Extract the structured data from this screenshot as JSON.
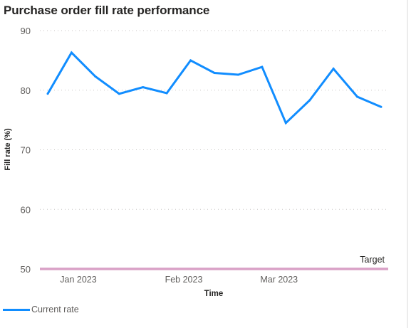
{
  "chart_data": {
    "type": "line",
    "title": "Purchase order fill rate performance",
    "xlabel": "Time",
    "ylabel": "Fill rate (%)",
    "ylim": [
      50,
      90
    ],
    "yticks": [
      50,
      60,
      70,
      80,
      90
    ],
    "xticks": [
      {
        "date": "2023-01-01",
        "label": "Jan 2023"
      },
      {
        "date": "2023-02-01",
        "label": "Feb 2023"
      },
      {
        "date": "2023-03-01",
        "label": "Mar 2023"
      }
    ],
    "grid": true,
    "legend_position": "bottom-left",
    "series": [
      {
        "name": "Current rate",
        "color": "#118DFF",
        "points": [
          {
            "x": "2022-12-23",
            "y": 79.4
          },
          {
            "x": "2022-12-30",
            "y": 86.3
          },
          {
            "x": "2023-01-06",
            "y": 82.3
          },
          {
            "x": "2023-01-13",
            "y": 79.4
          },
          {
            "x": "2023-01-20",
            "y": 80.5
          },
          {
            "x": "2023-01-27",
            "y": 79.5
          },
          {
            "x": "2023-02-03",
            "y": 85.0
          },
          {
            "x": "2023-02-10",
            "y": 82.9
          },
          {
            "x": "2023-02-17",
            "y": 82.6
          },
          {
            "x": "2023-02-24",
            "y": 83.9
          },
          {
            "x": "2023-03-03",
            "y": 74.5
          },
          {
            "x": "2023-03-10",
            "y": 78.3
          },
          {
            "x": "2023-03-17",
            "y": 83.6
          },
          {
            "x": "2023-03-24",
            "y": 78.9
          },
          {
            "x": "2023-03-31",
            "y": 77.2
          }
        ]
      }
    ],
    "reference_lines": [
      {
        "label": "Target",
        "y": 50,
        "color": "#D9A0C6"
      }
    ]
  }
}
